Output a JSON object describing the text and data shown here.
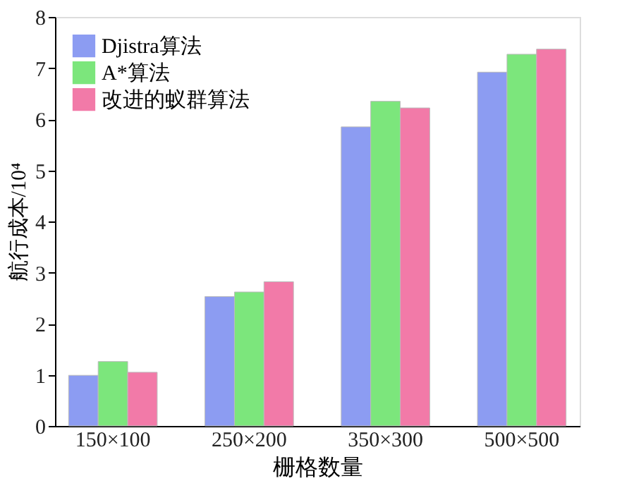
{
  "chart_data": {
    "type": "bar",
    "xlabel": "栅格数量",
    "ylabel": "航行成本/10⁴",
    "categories": [
      "150×100",
      "250×200",
      "350×300",
      "500×500"
    ],
    "series": [
      {
        "name": "Djistra算法",
        "color": "#8c9cf2",
        "values": [
          0.99,
          2.53,
          5.85,
          6.92
        ]
      },
      {
        "name": "A*算法",
        "color": "#7ce67c",
        "values": [
          1.26,
          2.62,
          6.35,
          7.27
        ]
      },
      {
        "name": "改进的蚁群算法",
        "color": "#f27aa8",
        "values": [
          1.05,
          2.82,
          6.22,
          7.37
        ]
      }
    ],
    "ylim": [
      0,
      8
    ],
    "yticks": [
      0,
      1,
      2,
      3,
      4,
      5,
      6,
      7,
      8
    ],
    "grid": false,
    "legend": "top left"
  }
}
